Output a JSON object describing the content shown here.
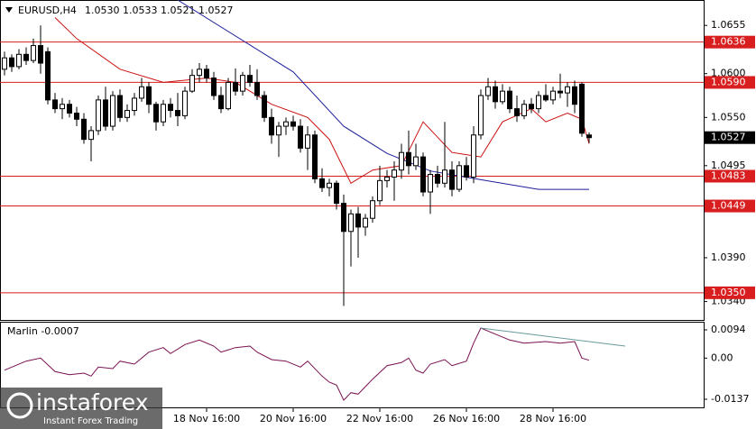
{
  "chart_data": [
    {
      "type": "candlestick",
      "title": "EURUSD,H4",
      "subtitle": "1.0530 1.0533 1.0521 1.0527",
      "candles": {
        "up_color": "#ffffff",
        "down_color": "#000000",
        "values": [
          [
            1.0605,
            1.0625,
            1.0598,
            1.0618
          ],
          [
            1.0618,
            1.0622,
            1.0602,
            1.0608
          ],
          [
            1.0608,
            1.0628,
            1.0605,
            1.0622
          ],
          [
            1.0622,
            1.063,
            1.061,
            1.0615
          ],
          [
            1.0615,
            1.064,
            1.0612,
            1.0632
          ],
          [
            1.0632,
            1.0655,
            1.06,
            1.0612
          ],
          [
            1.0625,
            1.063,
            1.0565,
            1.057
          ],
          [
            1.057,
            1.0578,
            1.0555,
            1.056
          ],
          [
            1.056,
            1.0572,
            1.0548,
            1.0565
          ],
          [
            1.0565,
            1.057,
            1.055,
            1.0555
          ],
          [
            1.0555,
            1.0562,
            1.054,
            1.0548
          ],
          [
            1.0548,
            1.0555,
            1.052,
            1.0525
          ],
          [
            1.0525,
            1.054,
            1.05,
            1.0535
          ],
          [
            1.0535,
            1.0575,
            1.053,
            1.057
          ],
          [
            1.057,
            1.0585,
            1.0535,
            1.054
          ],
          [
            1.054,
            1.058,
            1.0535,
            1.0575
          ],
          [
            1.0575,
            1.0582,
            1.0545,
            1.055
          ],
          [
            1.055,
            1.0565,
            1.0545,
            1.0558
          ],
          [
            1.0558,
            1.0578,
            1.0552,
            1.0572
          ],
          [
            1.0572,
            1.0595,
            1.0568,
            1.0585
          ],
          [
            1.0585,
            1.059,
            1.0555,
            1.0565
          ],
          [
            1.0565,
            1.0568,
            1.0535,
            1.0545
          ],
          [
            1.0545,
            1.057,
            1.054,
            1.0565
          ],
          [
            1.0565,
            1.0572,
            1.055,
            1.0558
          ],
          [
            1.0558,
            1.0578,
            1.054,
            1.0552
          ],
          [
            1.0552,
            1.0585,
            1.0548,
            1.058
          ],
          [
            1.058,
            1.0605,
            1.0578,
            1.0598
          ],
          [
            1.0598,
            1.0612,
            1.059,
            1.0605
          ],
          [
            1.0605,
            1.061,
            1.059,
            1.0595
          ],
          [
            1.0595,
            1.0602,
            1.057,
            1.0575
          ],
          [
            1.0575,
            1.0585,
            1.0555,
            1.056
          ],
          [
            1.056,
            1.0595,
            1.0558,
            1.059
          ],
          [
            1.059,
            1.0606,
            1.0575,
            1.058
          ],
          [
            1.058,
            1.0602,
            1.0575,
            1.0598
          ],
          [
            1.0598,
            1.061,
            1.0585,
            1.059
          ],
          [
            1.059,
            1.0605,
            1.057,
            1.0575
          ],
          [
            1.0575,
            1.058,
            1.0545,
            1.055
          ],
          [
            1.055,
            1.056,
            1.052,
            1.053
          ],
          [
            1.053,
            1.0545,
            1.0505,
            1.054
          ],
          [
            1.054,
            1.055,
            1.053,
            1.0545
          ],
          [
            1.0545,
            1.0552,
            1.0535,
            1.054
          ],
          [
            1.054,
            1.0548,
            1.051,
            1.0515
          ],
          [
            1.0515,
            1.054,
            1.049,
            1.053
          ],
          [
            1.053,
            1.0535,
            1.0475,
            1.048
          ],
          [
            1.048,
            1.0492,
            1.0465,
            1.047
          ],
          [
            1.047,
            1.048,
            1.046,
            1.0475
          ],
          [
            1.0475,
            1.0478,
            1.0445,
            1.0452
          ],
          [
            1.0452,
            1.0462,
            1.0335,
            1.042
          ],
          [
            1.042,
            1.0445,
            1.038,
            1.044
          ],
          [
            1.044,
            1.0448,
            1.039,
            1.0425
          ],
          [
            1.0425,
            1.044,
            1.0415,
            1.0435
          ],
          [
            1.0435,
            1.046,
            1.043,
            1.0455
          ],
          [
            1.0455,
            1.0495,
            1.045,
            1.0478
          ],
          [
            1.0478,
            1.049,
            1.047,
            1.0482
          ],
          [
            1.0482,
            1.05,
            1.0455,
            1.049
          ],
          [
            1.049,
            1.052,
            1.048,
            1.051
          ],
          [
            1.051,
            1.0535,
            1.0485,
            1.0495
          ],
          [
            1.0495,
            1.052,
            1.049,
            1.0505
          ],
          [
            1.0505,
            1.051,
            1.046,
            1.0465
          ],
          [
            1.0465,
            1.049,
            1.044,
            1.0485
          ],
          [
            1.0485,
            1.0495,
            1.047,
            1.0475
          ],
          [
            1.0475,
            1.0545,
            1.047,
            1.049
          ],
          [
            1.049,
            1.05,
            1.046,
            1.0468
          ],
          [
            1.0468,
            1.05,
            1.0465,
            1.0495
          ],
          [
            1.0495,
            1.0505,
            1.0478,
            1.0482
          ],
          [
            1.0482,
            1.054,
            1.0475,
            1.053
          ],
          [
            1.053,
            1.0582,
            1.0525,
            1.0575
          ],
          [
            1.0575,
            1.0595,
            1.057,
            1.0585
          ],
          [
            1.0585,
            1.0592,
            1.056,
            1.0568
          ],
          [
            1.0568,
            1.0588,
            1.0565,
            1.058
          ],
          [
            1.058,
            1.0585,
            1.0555,
            1.056
          ],
          [
            1.056,
            1.0575,
            1.0545,
            1.0552
          ],
          [
            1.0552,
            1.057,
            1.0548,
            1.0565
          ],
          [
            1.0565,
            1.0572,
            1.0555,
            1.056
          ],
          [
            1.056,
            1.058,
            1.0555,
            1.0575
          ],
          [
            1.0575,
            1.0588,
            1.0568,
            1.057
          ],
          [
            1.057,
            1.0585,
            1.0565,
            1.058
          ],
          [
            1.058,
            1.06,
            1.0572,
            1.0578
          ],
          [
            1.0578,
            1.059,
            1.0562,
            1.0585
          ],
          [
            1.0585,
            1.0592,
            1.0555,
            1.0565
          ],
          [
            1.0588,
            1.059,
            1.0528,
            1.0532
          ],
          [
            1.053,
            1.0533,
            1.0521,
            1.0527
          ]
        ]
      },
      "lines": [
        {
          "color": "#cc1010",
          "x": [
            7,
            10,
            16,
            22,
            28,
            32,
            37,
            42,
            45,
            48,
            51,
            55,
            58,
            62,
            66,
            69,
            73,
            75,
            78,
            80,
            81
          ],
          "values": [
            1.0664,
            1.064,
            1.0605,
            1.059,
            1.0595,
            1.059,
            1.0565,
            1.055,
            1.0525,
            1.0475,
            1.049,
            1.0495,
            1.0545,
            1.051,
            1.0505,
            1.0545,
            1.056,
            1.0545,
            1.0555,
            1.0548,
            1.052
          ]
        },
        {
          "color": "#1e1e9c",
          "x": [
            24,
            40,
            47,
            53,
            59,
            66,
            74,
            81
          ],
          "values": [
            1.0684,
            1.0602,
            1.054,
            1.0509,
            1.0489,
            1.0479,
            1.0468,
            1.0468
          ]
        }
      ],
      "levels": [
        1.0636,
        {
          "value": 1.059,
          "label": "1.0590"
        },
        1.0483,
        1.0449,
        {
          "value": 1.035,
          "label": "1.0350"
        }
      ],
      "level_color": "#d81e1e",
      "last_price": 1.0527,
      "xlim": [
        -0.625,
        96.875
      ],
      "xticks": [
        {
          "value": 28,
          "label": "18 Nov 16:00"
        },
        {
          "value": 40,
          "label": "20 Nov 16:00"
        },
        {
          "value": 52,
          "label": "22 Nov 16:00"
        },
        {
          "value": 64,
          "label": "26 Nov 16:00"
        },
        {
          "value": 76,
          "label": "28 Nov 16:00"
        }
      ],
      "ylim": [
        1.0319,
        1.0684
      ],
      "yticks": [
        1.0655,
        {
          "value": 1.06,
          "label": "1.0600"
        },
        {
          "value": 1.055,
          "label": "1.0550"
        },
        1.0495,
        {
          "value": 1.039,
          "label": "1.0390"
        },
        {
          "value": 1.034,
          "label": "1.0340"
        }
      ]
    },
    {
      "type": "line",
      "title": "Marlin -0.0007",
      "series": [
        {
          "color": "#7a1050",
          "x": [
            0,
            3,
            5,
            7,
            9,
            11,
            12,
            13,
            15,
            16,
            18,
            20,
            22,
            23,
            25,
            27,
            29,
            30,
            32,
            34,
            35,
            37,
            39,
            41,
            42,
            44,
            45,
            46,
            47,
            48,
            49,
            50,
            51,
            53,
            55,
            56,
            57,
            58,
            59,
            61,
            62,
            64,
            65,
            66,
            68,
            70,
            72,
            75,
            77,
            79,
            80,
            81
          ],
          "values": [
            -0.004,
            -0.001,
            0.0,
            -0.0045,
            -0.0055,
            -0.005,
            -0.006,
            -0.003,
            -0.0035,
            -0.001,
            -0.002,
            0.002,
            0.0035,
            0.0015,
            0.0045,
            0.006,
            0.004,
            0.002,
            0.0035,
            0.004,
            0.002,
            -0.0005,
            -0.001,
            -0.003,
            -0.001,
            -0.006,
            -0.008,
            -0.009,
            -0.014,
            -0.0115,
            -0.012,
            -0.0095,
            -0.007,
            -0.0025,
            -0.0015,
            0.0,
            -0.004,
            -0.005,
            -0.002,
            -0.0005,
            -0.0025,
            -0.001,
            0.005,
            0.01,
            0.008,
            0.006,
            0.005,
            0.0055,
            0.005,
            0.0055,
            0.0,
            -0.0007
          ]
        },
        {
          "color": "#6a9a9a",
          "x": [
            66,
            86
          ],
          "values": [
            0.01,
            0.004
          ]
        }
      ],
      "xlim": [
        -0.625,
        96.875
      ],
      "ylim": [
        -0.0164,
        0.0121
      ],
      "yticks": [
        0.0094,
        {
          "value": 0,
          "label": "0.00"
        },
        -0.0137
      ]
    }
  ],
  "watermark": {
    "title": "instaforex",
    "subtitle": "Instant Forex Trading"
  }
}
